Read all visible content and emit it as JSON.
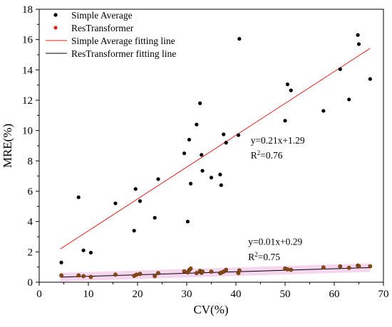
{
  "chart_data": {
    "type": "scatter",
    "title": "",
    "xlabel": "CV(%)",
    "ylabel": "MRE(%)",
    "xlim": [
      0,
      70
    ],
    "ylim": [
      0,
      18
    ],
    "xticks": [
      "0",
      "10",
      "20",
      "30",
      "40",
      "50",
      "60",
      "70"
    ],
    "yticks": [
      "0",
      "2",
      "4",
      "6",
      "8",
      "10",
      "12",
      "14",
      "16",
      "18"
    ],
    "grid": false,
    "legend_position": "top-left",
    "series": [
      {
        "name": "Simple Average",
        "kind": "scatter",
        "color": "#000000",
        "points": [
          [
            4.5,
            1.3
          ],
          [
            8.0,
            5.6
          ],
          [
            9.0,
            2.1
          ],
          [
            10.5,
            1.95
          ],
          [
            15.5,
            5.2
          ],
          [
            19.3,
            3.4
          ],
          [
            19.6,
            6.15
          ],
          [
            20.5,
            5.35
          ],
          [
            23.5,
            4.25
          ],
          [
            24.2,
            6.8
          ],
          [
            29.5,
            8.5
          ],
          [
            30.2,
            4.0
          ],
          [
            30.5,
            9.4
          ],
          [
            30.8,
            6.5
          ],
          [
            32.0,
            10.4
          ],
          [
            32.7,
            11.8
          ],
          [
            33.0,
            8.4
          ],
          [
            33.2,
            7.35
          ],
          [
            35.0,
            6.9
          ],
          [
            36.8,
            7.1
          ],
          [
            37.0,
            6.4
          ],
          [
            37.5,
            9.75
          ],
          [
            38.0,
            9.2
          ],
          [
            40.5,
            9.7
          ],
          [
            40.7,
            16.05
          ],
          [
            50.0,
            10.65
          ],
          [
            50.5,
            13.05
          ],
          [
            51.2,
            12.65
          ],
          [
            57.8,
            11.3
          ],
          [
            61.2,
            14.05
          ],
          [
            63.0,
            12.05
          ],
          [
            64.8,
            16.3
          ],
          [
            65.0,
            15.7
          ],
          [
            67.3,
            13.4
          ]
        ]
      },
      {
        "name": "ResTransformer",
        "kind": "scatter",
        "color": "#e0201b",
        "points": [
          [
            4.5,
            0.45
          ],
          [
            8.0,
            0.45
          ],
          [
            9.0,
            0.4
          ],
          [
            10.5,
            0.35
          ],
          [
            15.5,
            0.5
          ],
          [
            19.3,
            0.42
          ],
          [
            19.8,
            0.5
          ],
          [
            20.5,
            0.55
          ],
          [
            23.5,
            0.4
          ],
          [
            24.2,
            0.6
          ],
          [
            29.5,
            0.72
          ],
          [
            30.2,
            0.65
          ],
          [
            30.5,
            0.8
          ],
          [
            30.8,
            0.9
          ],
          [
            32.0,
            0.6
          ],
          [
            32.7,
            0.75
          ],
          [
            33.0,
            0.62
          ],
          [
            33.2,
            0.7
          ],
          [
            35.0,
            0.7
          ],
          [
            36.8,
            0.6
          ],
          [
            37.0,
            0.62
          ],
          [
            37.5,
            0.7
          ],
          [
            38.0,
            0.82
          ],
          [
            40.5,
            0.6
          ],
          [
            40.7,
            0.78
          ],
          [
            50.0,
            0.9
          ],
          [
            50.5,
            0.85
          ],
          [
            51.2,
            0.82
          ],
          [
            57.8,
            0.98
          ],
          [
            61.2,
            1.05
          ],
          [
            63.0,
            0.95
          ],
          [
            64.8,
            1.1
          ],
          [
            65.0,
            1.05
          ],
          [
            67.3,
            1.05
          ]
        ]
      },
      {
        "name": "Simple Average fitting line",
        "kind": "line",
        "color": "#e0201b",
        "x_range": [
          4.3,
          67.3
        ],
        "slope": 0.21,
        "intercept": 1.29
      },
      {
        "name": "ResTransformer fitting line",
        "kind": "line",
        "color": "#000000",
        "x_range": [
          4.3,
          67.3
        ],
        "slope": 0.01,
        "intercept": 0.29
      }
    ],
    "annotations": [
      {
        "name": "sa-equation",
        "text": "y=0.21x+1.29",
        "x": 43.0,
        "y": 9.15
      },
      {
        "name": "sa-r2",
        "text": "R",
        "sup": "2",
        "tail": "=0.76",
        "x": 43.0,
        "y": 8.15
      },
      {
        "name": "rt-equation",
        "text": "y=0.01x+0.29",
        "x": 42.5,
        "y": 2.45
      },
      {
        "name": "rt-r2",
        "text": "R",
        "sup": "2",
        "tail": "=0.75",
        "x": 42.5,
        "y": 1.45
      }
    ]
  }
}
